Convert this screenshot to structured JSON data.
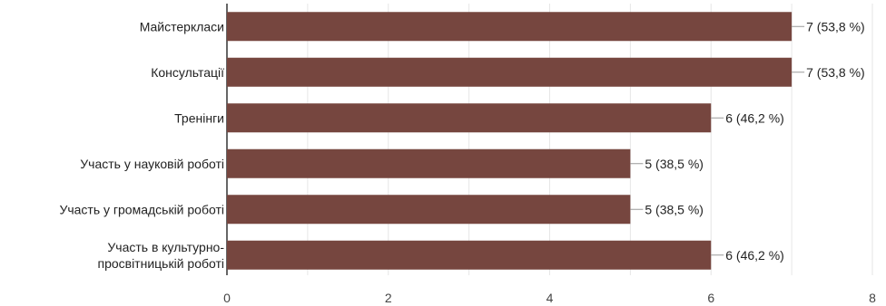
{
  "colors": {
    "bar": "#76463f",
    "grid": "#e6e6e6",
    "axis": "#333333",
    "connector": "#999999"
  },
  "chart_data": {
    "type": "bar",
    "orientation": "horizontal",
    "categories": [
      [
        "Майстеркласи"
      ],
      [
        "Консультації"
      ],
      [
        "Тренінги"
      ],
      [
        "Участь у науковій роботі"
      ],
      [
        "Участь у громадській роботі"
      ],
      [
        "Участь в культурно-",
        "просвітницькій роботі"
      ]
    ],
    "values": [
      7,
      7,
      6,
      5,
      5,
      6
    ],
    "data_labels": [
      "7 (53,8 %)",
      "7 (53,8 %)",
      "6 (46,2 %)",
      "5 (38,5 %)",
      "5 (38,5 %)",
      "6 (46,2 %)"
    ],
    "xlim": [
      0,
      8
    ],
    "xticks": [
      0,
      2,
      4,
      6,
      8
    ],
    "grid": true
  }
}
